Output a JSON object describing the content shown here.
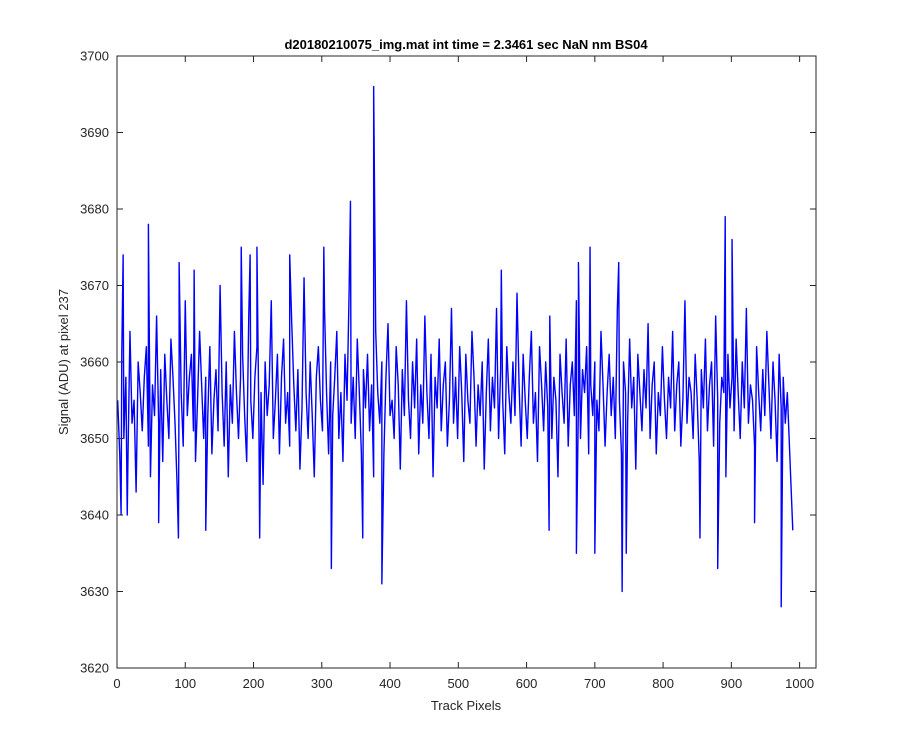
{
  "chart_data": {
    "type": "line",
    "title": "d20180210075_img.mat int time = 2.3461 sec  NaN nm BS04",
    "xlabel": "Track Pixels",
    "ylabel": "Signal (ADU) at pixel 237",
    "xlim": [
      0,
      1024
    ],
    "ylim": [
      3620,
      3700
    ],
    "xticks": [
      0,
      100,
      200,
      300,
      400,
      500,
      600,
      700,
      800,
      900,
      1000
    ],
    "yticks": [
      3620,
      3630,
      3640,
      3650,
      3660,
      3670,
      3680,
      3690,
      3700
    ],
    "grid": false,
    "legend": "none",
    "series_color": "#0000ff",
    "series": [
      {
        "x_start": 1,
        "x_step": 3,
        "values": [
          3655,
          3648,
          3661,
          3650,
          3658,
          3647,
          3664,
          3652,
          3655,
          3643,
          3660,
          3656,
          3651,
          3658,
          3662,
          3649,
          3645,
          3657,
          3653,
          3666,
          3652,
          3659,
          3647,
          3661,
          3655,
          3650,
          3663,
          3658,
          3652,
          3644,
          3660,
          3656,
          3649,
          3668,
          3653,
          3658,
          3661,
          3651,
          3647,
          3655,
          3664,
          3657,
          3650,
          3658,
          3653,
          3662,
          3648,
          3655,
          3659,
          3651,
          3670,
          3656,
          3649,
          3660,
          3645,
          3657,
          3652,
          3664,
          3656,
          3650,
          3658,
          3661,
          3653,
          3647,
          3666,
          3655,
          3650,
          3658,
          3662,
          3651,
          3656,
          3644,
          3660,
          3653,
          3657,
          3668,
          3650,
          3655,
          3661,
          3648,
          3658,
          3663,
          3652,
          3656,
          3649,
          3665,
          3657,
          3651,
          3659,
          3646,
          3654,
          3671,
          3656,
          3650,
          3660,
          3653,
          3645,
          3658,
          3662,
          3655,
          3651,
          3667,
          3656,
          3648,
          3660,
          3653,
          3658,
          3664,
          3650,
          3656,
          3647,
          3661,
          3655,
          3669,
          3652,
          3658,
          3650,
          3663,
          3656,
          3648,
          3659,
          3654,
          3661,
          3651,
          3657,
          3645,
          3664,
          3656,
          3652,
          3660,
          3648,
          3658,
          3665,
          3653,
          3655,
          3650,
          3662,
          3657,
          3646,
          3659,
          3653,
          3668,
          3655,
          3650,
          3660,
          3654,
          3663,
          3648,
          3657,
          3652,
          3666,
          3656,
          3650,
          3661,
          3645,
          3658,
          3654,
          3663,
          3651,
          3657,
          3660,
          3649,
          3655,
          3667,
          3652,
          3658,
          3650,
          3662,
          3656,
          3647,
          3661,
          3655,
          3652,
          3664,
          3658,
          3649,
          3657,
          3653,
          3660,
          3646,
          3656,
          3663,
          3651,
          3658,
          3654,
          3667,
          3650,
          3659,
          3655,
          3648,
          3662,
          3656,
          3652,
          3660,
          3653,
          3669,
          3657,
          3649,
          3661,
          3655,
          3650,
          3658,
          3664,
          3652,
          3656,
          3647,
          3662,
          3657,
          3651,
          3660,
          3654,
          3666,
          3650,
          3658,
          3655,
          3645,
          3661,
          3656,
          3652,
          3663,
          3649,
          3657,
          3660,
          3653,
          3668,
          3655,
          3650,
          3659,
          3656,
          3662,
          3648,
          3657,
          3653,
          3660,
          3655,
          3651,
          3664,
          3657,
          3649,
          3656,
          3661,
          3653,
          3658,
          3650,
          3667,
          3655,
          3648,
          3660,
          3656,
          3652,
          3663,
          3654,
          3658,
          3646,
          3661,
          3656,
          3651,
          3659,
          3654,
          3665,
          3650,
          3657,
          3660,
          3648,
          3656,
          3653,
          3662,
          3655,
          3650,
          3658,
          3654,
          3664,
          3651,
          3657,
          3660,
          3649,
          3655,
          3668,
          3652,
          3658,
          3656,
          3650,
          3661,
          3655,
          3647,
          3659,
          3654,
          3663,
          3651,
          3657,
          3660,
          3649,
          3666,
          3655,
          3652,
          3658,
          3656,
          3645,
          3661,
          3654,
          3658,
          3651,
          3663,
          3656,
          3650,
          3660,
          3654,
          3667,
          3652,
          3657,
          3655,
          3649,
          3662,
          3656,
          3651,
          3659,
          3653,
          3664,
          3657,
          3650,
          3660,
          3655,
          3647,
          3661,
          3654,
          3658,
          3652,
          3656
        ],
        "spikes": [
          {
            "x": 6,
            "value": 3640
          },
          {
            "x": 9,
            "value": 3674
          },
          {
            "x": 15,
            "value": 3640
          },
          {
            "x": 46,
            "value": 3678
          },
          {
            "x": 61,
            "value": 3639
          },
          {
            "x": 90,
            "value": 3637
          },
          {
            "x": 91,
            "value": 3673
          },
          {
            "x": 113,
            "value": 3672
          },
          {
            "x": 130,
            "value": 3638
          },
          {
            "x": 182,
            "value": 3675
          },
          {
            "x": 195,
            "value": 3674
          },
          {
            "x": 205,
            "value": 3675
          },
          {
            "x": 209,
            "value": 3637
          },
          {
            "x": 253,
            "value": 3674
          },
          {
            "x": 303,
            "value": 3675
          },
          {
            "x": 314,
            "value": 3633
          },
          {
            "x": 342,
            "value": 3681
          },
          {
            "x": 360,
            "value": 3637
          },
          {
            "x": 376,
            "value": 3696
          },
          {
            "x": 388,
            "value": 3631
          },
          {
            "x": 563,
            "value": 3672
          },
          {
            "x": 633,
            "value": 3638
          },
          {
            "x": 673,
            "value": 3635
          },
          {
            "x": 676,
            "value": 3673
          },
          {
            "x": 693,
            "value": 3675
          },
          {
            "x": 700,
            "value": 3635
          },
          {
            "x": 735,
            "value": 3673
          },
          {
            "x": 740,
            "value": 3630
          },
          {
            "x": 746,
            "value": 3635
          },
          {
            "x": 854,
            "value": 3637
          },
          {
            "x": 880,
            "value": 3633
          },
          {
            "x": 891,
            "value": 3679
          },
          {
            "x": 901,
            "value": 3676
          },
          {
            "x": 934,
            "value": 3639
          },
          {
            "x": 973,
            "value": 3628
          },
          {
            "x": 990,
            "value": 3638
          }
        ]
      }
    ]
  }
}
